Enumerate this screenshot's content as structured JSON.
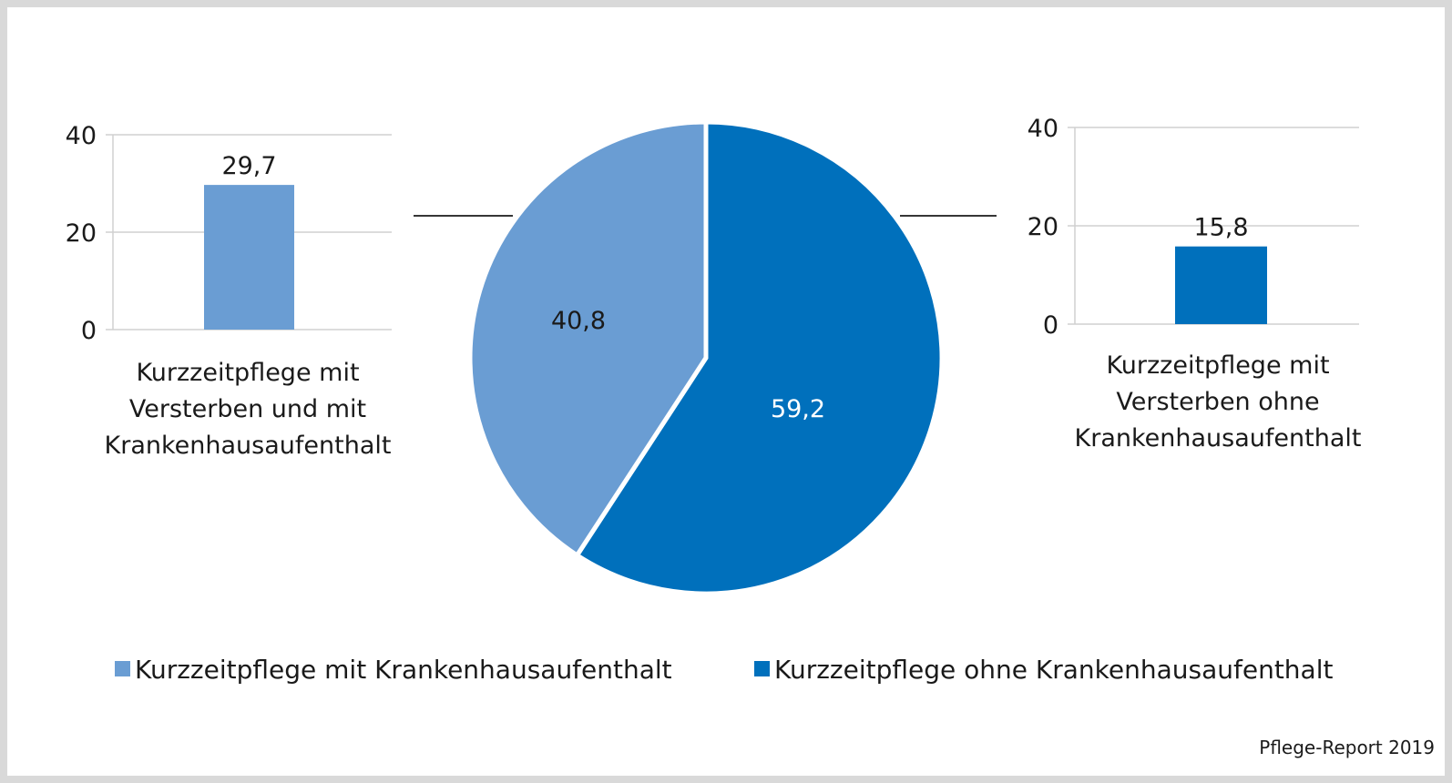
{
  "colors": {
    "light_blue": "#6a9dd3",
    "dark_blue": "#0070bc",
    "grid": "#d0d0d0",
    "connector": "#1a1a1a"
  },
  "chart_data": [
    {
      "type": "pie",
      "slices": [
        {
          "label": "Kurzzeitpflege mit Krankenhausaufenthalt",
          "value": 40.8,
          "value_label": "40,8",
          "color": "#6a9dd3"
        },
        {
          "label": "Kurzzeitpflege ohne Krankenhausaufenthalt",
          "value": 59.2,
          "value_label": "59,2",
          "color": "#0070bc"
        }
      ],
      "legend_position": "bottom"
    },
    {
      "type": "bar",
      "categories": [
        "Kurzzeitpflege mit Versterben und mit Krankenhausaufenthalt"
      ],
      "category_lines": [
        "Kurzzeitpflege mit",
        "Versterben und mit",
        "Krankenhausaufenthalt"
      ],
      "values": [
        29.7
      ],
      "value_label": "29,7",
      "ylim": [
        0,
        40
      ],
      "yticks": [
        "0",
        "20",
        "40"
      ],
      "color": "#6a9dd3",
      "grid": true
    },
    {
      "type": "bar",
      "categories": [
        "Kurzzeitpflege mit Versterben ohne Krankenhausaufenthalt"
      ],
      "category_lines": [
        "Kurzzeitpflege mit",
        "Versterben ohne",
        "Krankenhausaufenthalt"
      ],
      "values": [
        15.8
      ],
      "value_label": "15,8",
      "ylim": [
        0,
        40
      ],
      "yticks": [
        "0",
        "20",
        "40"
      ],
      "color": "#0070bc",
      "grid": true
    }
  ],
  "legend": [
    {
      "label": "Kurzzeitpflege mit Krankenhausaufenthalt",
      "color": "#6a9dd3"
    },
    {
      "label": "Kurzzeitpflege ohne Krankenhausaufenthalt",
      "color": "#0070bc"
    }
  ],
  "source": "Pflege-Report 2019"
}
